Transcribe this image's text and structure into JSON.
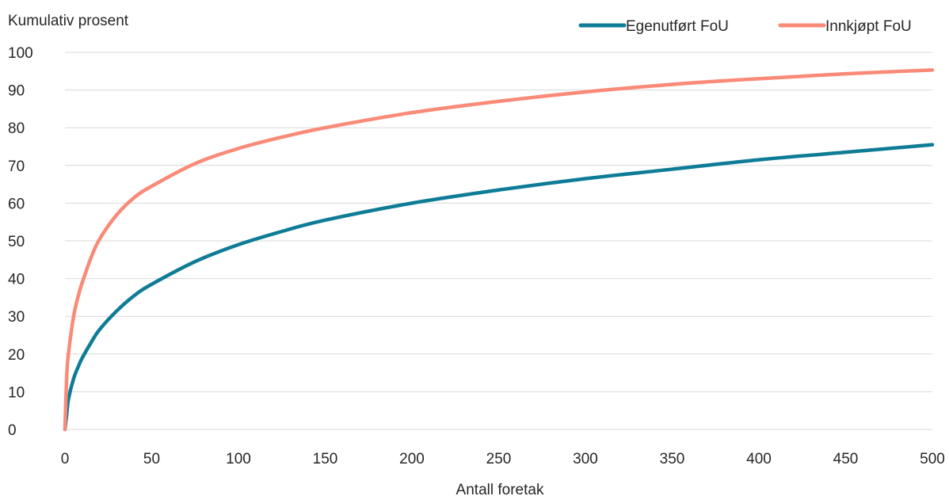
{
  "chart_data": {
    "type": "line",
    "title": "",
    "ylabel": "Kumulativ prosent",
    "xlabel": "Antall foretak",
    "xlim": [
      0,
      500
    ],
    "ylim": [
      0,
      100
    ],
    "x_ticks": [
      "0",
      "50",
      "100",
      "150",
      "200",
      "250",
      "300",
      "350",
      "400",
      "450",
      "500"
    ],
    "y_ticks": [
      "0",
      "10",
      "20",
      "30",
      "40",
      "50",
      "60",
      "70",
      "80",
      "90",
      "100"
    ],
    "grid": true,
    "legend_position": "top-right",
    "series": [
      {
        "name": "Egenutført FoU",
        "color": "#0e7c96",
        "x": [
          0,
          1,
          2,
          5,
          8,
          10,
          15,
          20,
          30,
          40,
          50,
          75,
          100,
          125,
          150,
          200,
          250,
          300,
          350,
          400,
          450,
          500
        ],
        "y": [
          0,
          4,
          8,
          13.5,
          17,
          19,
          23,
          26.5,
          31.5,
          35.5,
          38.5,
          44.5,
          49,
          52.5,
          55.5,
          60,
          63.5,
          66.5,
          69,
          71.5,
          73.5,
          75.5
        ]
      },
      {
        "name": "Innkjøpt FoU",
        "color": "#fa8a78",
        "x": [
          0,
          1,
          2,
          5,
          8,
          10,
          15,
          20,
          30,
          40,
          50,
          75,
          100,
          125,
          150,
          200,
          250,
          300,
          350,
          400,
          450,
          500
        ],
        "y": [
          0,
          14,
          20,
          30,
          36,
          39,
          45.5,
          50.5,
          57,
          61.5,
          64.5,
          70.5,
          74.5,
          77.5,
          80,
          84,
          87,
          89.5,
          91.5,
          93,
          94.3,
          95.3
        ]
      }
    ]
  }
}
